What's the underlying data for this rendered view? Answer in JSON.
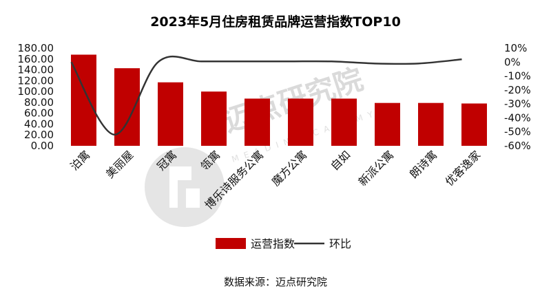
{
  "chart_data": {
    "type": "bar",
    "title": "2023年5月住房租赁品牌运营指数TOP10",
    "categories": [
      "泊寓",
      "美丽屋",
      "冠寓",
      "瓴寓",
      "博乐诗服务公寓",
      "魔方公寓",
      "自如",
      "新派公寓",
      "朗诗寓",
      "优客逸家"
    ],
    "series": [
      {
        "name": "运营指数",
        "axis": "left",
        "type": "bar",
        "color": "#c00000",
        "values": [
          168.0,
          143.0,
          117.0,
          100.0,
          87.0,
          87.0,
          87.0,
          79.0,
          79.0,
          78.0
        ]
      },
      {
        "name": "环比",
        "axis": "right",
        "type": "line",
        "color": "#333333",
        "values": [
          0,
          -52,
          0,
          0.5,
          0.5,
          0.5,
          0.5,
          -1,
          -1,
          2
        ]
      }
    ],
    "y_left": {
      "min": 0,
      "max": 180,
      "step": 20,
      "ticks": [
        "0.00",
        "20.00",
        "40.00",
        "60.00",
        "80.00",
        "100.00",
        "120.00",
        "140.00",
        "160.00",
        "180.00"
      ]
    },
    "y_right": {
      "min": -60,
      "max": 10,
      "step": 10,
      "ticks": [
        "-60%",
        "-50%",
        "-40%",
        "-30%",
        "-20%",
        "-10%",
        "0%",
        "10%"
      ]
    },
    "legend_position": "bottom",
    "grid": false
  },
  "source_text": "数据来源：迈点研究院",
  "watermark": {
    "text": "迈点研究院",
    "sub": "MEADIN ACADEMY",
    "icon": "meadin-logo-icon"
  }
}
